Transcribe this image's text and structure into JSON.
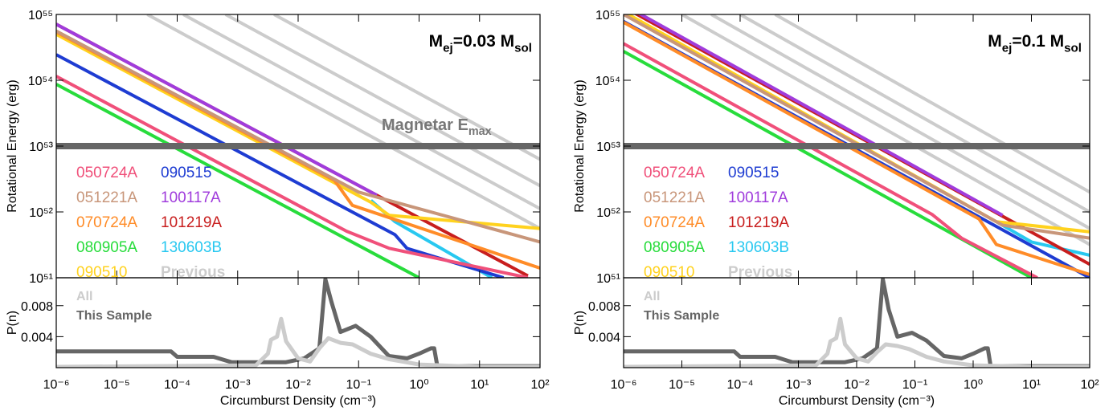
{
  "chart_data": [
    {
      "type": "line",
      "xscale": "log",
      "yscale": "log",
      "xlim": [
        1e-06,
        100
      ],
      "ylim": [
        1e+51,
        1e+55
      ],
      "xticks": [
        1e-06,
        1e-05,
        0.0001,
        0.001,
        0.01,
        0.1,
        1,
        10,
        100
      ],
      "yticks": [
        {
          "value": 1e+51,
          "label": "10⁵¹"
        },
        {
          "value": 1e+52,
          "label": "10⁵²"
        },
        {
          "value": 1e+53,
          "label": "10⁵³"
        },
        {
          "value": 1e+54,
          "label": "10⁵⁴"
        },
        {
          "value": 1e+55,
          "label": "10⁵⁵"
        }
      ],
      "ylabel": "Rotational Energy (erg)",
      "annotation": [
        "M",
        "ej",
        "=0.03 M",
        "sol"
      ],
      "reference_line": {
        "value": 1e+53,
        "color": "#666666",
        "label": [
          "Magnetar E",
          "max"
        ]
      },
      "legend": "left",
      "series": [
        {
          "name": "050724A",
          "color": "#f0507a",
          "x": [
            1e-06,
            0.01,
            0.063,
            0.32,
            63
          ],
          "values": [
            1.15e+54,
            1.26e+52,
            5.1e+51,
            2.8e+51,
            1e+51
          ]
        },
        {
          "name": "051221A",
          "color": "#c8967a",
          "x": [
            1e-06,
            0.1,
            100
          ],
          "values": [
            5.6e+54,
            2e+52,
            3.5e+51
          ]
        },
        {
          "name": "070724A",
          "color": "#ff8c28",
          "x": [
            1e-06,
            0.04,
            0.079,
            100
          ],
          "values": [
            5.4e+54,
            3e+52,
            1.26e+52,
            1.4e+51
          ]
        },
        {
          "name": "080905A",
          "color": "#28dc3c",
          "x": [
            1e-06,
            1
          ],
          "values": [
            8.7e+53,
            1e+51
          ]
        },
        {
          "name": "090510",
          "color": "#ffd21e",
          "x": [
            1e-06,
            0.16,
            0.32,
            100
          ],
          "values": [
            5e+54,
            1.4e+52,
            8.9e+51,
            5.6e+51
          ]
        },
        {
          "name": "090515",
          "color": "#1e3cd2",
          "x": [
            1e-06,
            0.4,
            0.63,
            25
          ],
          "values": [
            2.45e+54,
            4.5e+51,
            2.8e+51,
            1e+51
          ]
        },
        {
          "name": "100117A",
          "color": "#a03cdc",
          "x": [
            1e-06,
            0.2
          ],
          "values": [
            7.1e+54,
            1.8e+52
          ]
        },
        {
          "name": "101219A",
          "color": "#c81e1e",
          "x": [
            1e-06,
            63
          ],
          "values": [
            7.1e+54,
            1.07e+51
          ]
        },
        {
          "name": "130603B",
          "color": "#28c8f0",
          "x": [
            0.16,
            0.4,
            16
          ],
          "values": [
            1.5e+52,
            7.1e+51,
            1e+51
          ]
        },
        {
          "name": "Previous",
          "color": "#cccccc",
          "font_weight": "bold",
          "x": [
            0.004,
            100
          ],
          "values": [
            1e+55,
            6.3e+52
          ]
        },
        {
          "color": "#cccccc",
          "x": [
            0.00063,
            100
          ],
          "values": [
            1e+55,
            2.5e+52
          ]
        },
        {
          "color": "#cccccc",
          "x": [
            0.000126,
            100
          ],
          "values": [
            1e+55,
            1.12e+52
          ]
        },
        {
          "color": "#cccccc",
          "x": [
            3.2e-05,
            100
          ],
          "values": [
            1e+55,
            5.6e+51
          ]
        }
      ]
    },
    {
      "type": "line",
      "xscale": "log",
      "xlim": [
        1e-06,
        100
      ],
      "ylim": [
        0,
        0.0116
      ],
      "xticks": [
        {
          "value": 1e-06,
          "label": "10⁻⁶"
        },
        {
          "value": 1e-05,
          "label": "10⁻⁵"
        },
        {
          "value": 0.0001,
          "label": "10⁻⁴"
        },
        {
          "value": 0.001,
          "label": "10⁻³"
        },
        {
          "value": 0.01,
          "label": "10⁻²"
        },
        {
          "value": 0.1,
          "label": "10⁻¹"
        },
        {
          "value": 1,
          "label": "10⁰"
        },
        {
          "value": 10,
          "label": "10¹"
        },
        {
          "value": 100,
          "label": "10²"
        }
      ],
      "yticks": [
        0.004,
        0.008
      ],
      "ylabel": "P(n)",
      "xlabel": "Circumburst Density (cm⁻³)",
      "legend": "upper left",
      "series": [
        {
          "name": "All",
          "color": "#cccccc",
          "x": [
            1e-06,
            0.002,
            0.00316,
            0.00355,
            0.00447,
            0.00525,
            0.00631,
            0.01,
            0.0158,
            0.0224,
            0.0316,
            0.0501,
            0.0794,
            0.158,
            0.316,
            1,
            10,
            100
          ],
          "values": [
            0.0001,
            0.0003,
            0.0018,
            0.0036,
            0.004,
            0.0063,
            0.0034,
            0.0012,
            0.0008,
            0.0025,
            0.0038,
            0.0032,
            0.003,
            0.0018,
            0.0011,
            0.0004,
            0.0001,
            0.0001
          ]
        },
        {
          "name": "This Sample",
          "color": "#666666",
          "x": [
            1e-06,
            7.9e-05,
            0.0001,
            0.0004,
            0.00079,
            0.0063,
            0.0126,
            0.0224,
            0.0282,
            0.0355,
            0.0501,
            0.0891,
            0.158,
            0.316,
            0.631,
            1,
            1.58,
            1.78,
            2,
            100
          ],
          "values": [
            0.0021,
            0.0021,
            0.0014,
            0.0014,
            0.0007,
            0.0007,
            0.0012,
            0.0025,
            0.0114,
            0.0085,
            0.0046,
            0.0054,
            0.004,
            0.0015,
            0.0012,
            0.0018,
            0.0025,
            0.0025,
            0.0002,
            0.0002
          ]
        }
      ]
    },
    {
      "type": "line",
      "xscale": "log",
      "yscale": "log",
      "xlim": [
        1e-06,
        100
      ],
      "ylim": [
        1e+51,
        1e+55
      ],
      "xticks": [
        1e-06,
        1e-05,
        0.0001,
        0.001,
        0.01,
        0.1,
        1,
        10,
        100
      ],
      "yticks": [
        {
          "value": 1e+51,
          "label": "10⁵¹"
        },
        {
          "value": 1e+52,
          "label": "10⁵²"
        },
        {
          "value": 1e+53,
          "label": "10⁵³"
        },
        {
          "value": 1e+54,
          "label": "10⁵⁴"
        },
        {
          "value": 1e+55,
          "label": "10⁵⁵"
        }
      ],
      "ylabel": "Rotational Energy (erg)",
      "annotation": [
        "M",
        "ej",
        "=0.1 M",
        "sol"
      ],
      "reference_line": {
        "value": 1e+53,
        "color": "#666666"
      },
      "legend": "left",
      "series": [
        {
          "name": "050724A",
          "color": "#f0507a",
          "x": [
            1e-06,
            0.2,
            0.63,
            12.6
          ],
          "values": [
            3.6e+54,
            9.1e+51,
            4e+51,
            1e+51
          ]
        },
        {
          "name": "051221A",
          "color": "#c8967a",
          "x": [
            1e-06,
            3.2,
            100
          ],
          "values": [
            1e+55,
            6.3e+51,
            4e+51
          ]
        },
        {
          "name": "070724A",
          "color": "#ff8c28",
          "x": [
            1e-06,
            1.26,
            2.5,
            100
          ],
          "values": [
            7.6e+54,
            7.8e+51,
            3.2e+51,
            1.12e+51
          ]
        },
        {
          "name": "080905A",
          "color": "#28dc3c",
          "x": [
            1e-06,
            10
          ],
          "values": [
            2.75e+54,
            1e+51
          ]
        },
        {
          "name": "090510",
          "color": "#ffd21e",
          "x": [
            1e-06,
            2.5,
            100
          ],
          "values": [
            1.1e+55,
            7.1e+51,
            5e+51
          ]
        },
        {
          "name": "090515",
          "color": "#1e3cd2",
          "x": [
            1e-06,
            100
          ],
          "values": [
            7.8e+54,
            1e+51
          ]
        },
        {
          "name": "100117A",
          "color": "#a03cdc",
          "x": [
            1e-06,
            3.2
          ],
          "values": [
            1.4e+55,
            8.9e+51
          ]
        },
        {
          "name": "101219A",
          "color": "#c81e1e",
          "x": [
            1e-06,
            100
          ],
          "values": [
            1.3e+55,
            1.6e+51
          ]
        },
        {
          "name": "130603B",
          "color": "#28c8f0",
          "x": [
            2.5,
            10,
            100
          ],
          "values": [
            7.1e+51,
            3.5e+51,
            2.2e+51
          ]
        },
        {
          "name": "Previous",
          "color": "#cccccc",
          "font_weight": "bold",
          "x": [
            0.0004,
            100
          ],
          "values": [
            1e+55,
            2e+52
          ]
        },
        {
          "color": "#cccccc",
          "x": [
            0.0001,
            100
          ],
          "values": [
            1e+55,
            1e+52
          ]
        },
        {
          "color": "#cccccc",
          "x": [
            3.2e-05,
            100
          ],
          "values": [
            1e+55,
            5.6e+51
          ]
        },
        {
          "color": "#cccccc",
          "x": [
            1e-05,
            100
          ],
          "values": [
            1e+55,
            3.2e+51
          ]
        }
      ]
    },
    {
      "type": "line",
      "xscale": "log",
      "xlim": [
        1e-06,
        100
      ],
      "ylim": [
        0,
        0.0116
      ],
      "xticks": [
        {
          "value": 1e-06,
          "label": "10⁻⁶"
        },
        {
          "value": 1e-05,
          "label": "10⁻⁵"
        },
        {
          "value": 0.0001,
          "label": "10⁻⁴"
        },
        {
          "value": 0.001,
          "label": "10⁻³"
        },
        {
          "value": 0.01,
          "label": "10⁻²"
        },
        {
          "value": 0.1,
          "label": "10⁻¹"
        },
        {
          "value": 1,
          "label": "10⁰"
        },
        {
          "value": 10,
          "label": "10¹"
        },
        {
          "value": 100,
          "label": "10²"
        }
      ],
      "yticks": [
        0.004,
        0.008
      ],
      "ylabel": "P(n)",
      "xlabel": "Circumburst Density (cm⁻³)",
      "legend": "upper left",
      "series": [
        {
          "name": "All",
          "color": "#cccccc",
          "x": [
            1e-06,
            0.002,
            0.00316,
            0.00355,
            0.00447,
            0.00525,
            0.00631,
            0.01,
            0.0158,
            0.0224,
            0.0316,
            0.0501,
            0.0794,
            0.158,
            0.316,
            1,
            10,
            100
          ],
          "values": [
            0.0001,
            0.0003,
            0.0018,
            0.0034,
            0.0038,
            0.0063,
            0.003,
            0.0012,
            0.0008,
            0.002,
            0.003,
            0.0028,
            0.0024,
            0.0014,
            0.0008,
            0.0003,
            0.0001,
            0.0001
          ]
        },
        {
          "name": "This Sample",
          "color": "#666666",
          "x": [
            1e-06,
            7.9e-05,
            0.0001,
            0.0004,
            0.00079,
            0.0063,
            0.0126,
            0.0224,
            0.0282,
            0.0355,
            0.0501,
            0.0891,
            0.158,
            0.316,
            0.631,
            1,
            1.58,
            1.78,
            2,
            100
          ],
          "values": [
            0.0021,
            0.0021,
            0.0014,
            0.0014,
            0.0007,
            0.0007,
            0.0012,
            0.0025,
            0.0114,
            0.0075,
            0.004,
            0.0045,
            0.0035,
            0.0015,
            0.0012,
            0.0018,
            0.0025,
            0.0025,
            0.0002,
            0.0002
          ]
        }
      ]
    }
  ]
}
